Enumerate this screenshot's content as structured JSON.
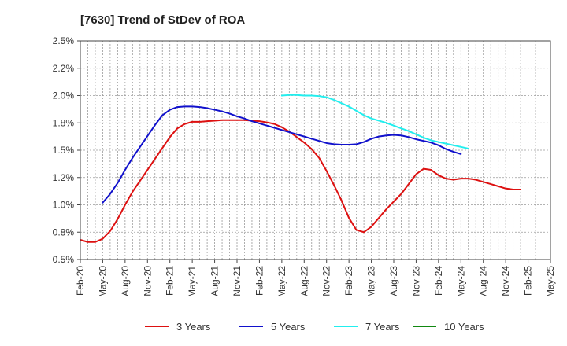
{
  "chart_data": {
    "type": "line",
    "title": "[7630]  Trend of StDev of ROA",
    "xlabel": "",
    "ylabel": "",
    "x_labels": [
      "Feb-20",
      "May-20",
      "Aug-20",
      "Nov-20",
      "Feb-21",
      "May-21",
      "Aug-21",
      "Nov-21",
      "Feb-22",
      "May-22",
      "Aug-22",
      "Nov-22",
      "Feb-23",
      "May-23",
      "Aug-23",
      "Nov-23",
      "Feb-24",
      "May-24",
      "Aug-24",
      "Nov-24",
      "Feb-25",
      "May-25"
    ],
    "y_ticks": [
      "0.5%",
      "0.8%",
      "1.0%",
      "1.2%",
      "1.5%",
      "1.8%",
      "2.0%",
      "2.2%",
      "2.5%"
    ],
    "ylim": [
      0.5,
      2.5
    ],
    "grid": true,
    "legend_position": "bottom",
    "series": [
      {
        "name": "3 Years",
        "color": "#dd1111",
        "start_index": 0,
        "values": [
          0.68,
          0.66,
          0.66,
          0.69,
          0.76,
          0.87,
          1.0,
          1.12,
          1.22,
          1.32,
          1.42,
          1.52,
          1.62,
          1.7,
          1.74,
          1.76,
          1.76,
          1.765,
          1.77,
          1.775,
          1.775,
          1.775,
          1.775,
          1.77,
          1.765,
          1.755,
          1.74,
          1.71,
          1.67,
          1.62,
          1.57,
          1.51,
          1.43,
          1.31,
          1.18,
          1.04,
          0.88,
          0.77,
          0.75,
          0.8,
          0.88,
          0.96,
          1.03,
          1.1,
          1.19,
          1.28,
          1.33,
          1.32,
          1.27,
          1.24,
          1.23,
          1.24,
          1.24,
          1.23,
          1.21,
          1.19,
          1.17,
          1.15,
          1.14,
          1.14
        ]
      },
      {
        "name": "5 Years",
        "color": "#1111cc",
        "start_index": 3,
        "values": [
          1.02,
          1.1,
          1.2,
          1.32,
          1.43,
          1.53,
          1.63,
          1.73,
          1.82,
          1.87,
          1.895,
          1.9,
          1.9,
          1.895,
          1.885,
          1.87,
          1.855,
          1.835,
          1.81,
          1.79,
          1.765,
          1.745,
          1.725,
          1.705,
          1.685,
          1.665,
          1.645,
          1.625,
          1.605,
          1.585,
          1.565,
          1.555,
          1.55,
          1.55,
          1.555,
          1.575,
          1.605,
          1.625,
          1.635,
          1.64,
          1.635,
          1.62,
          1.6,
          1.585,
          1.57,
          1.545,
          1.51,
          1.485,
          1.465
        ]
      },
      {
        "name": "7 Years",
        "color": "#22eeee",
        "start_index": 27,
        "values": [
          2.0,
          2.005,
          2.005,
          2.0,
          2.0,
          1.995,
          1.985,
          1.96,
          1.93,
          1.9,
          1.86,
          1.82,
          1.79,
          1.77,
          1.75,
          1.725,
          1.7,
          1.675,
          1.645,
          1.615,
          1.59,
          1.575,
          1.56,
          1.545,
          1.53,
          1.515
        ]
      },
      {
        "name": "10 Years",
        "color": "#118811",
        "start_index": 0,
        "values": []
      }
    ]
  }
}
